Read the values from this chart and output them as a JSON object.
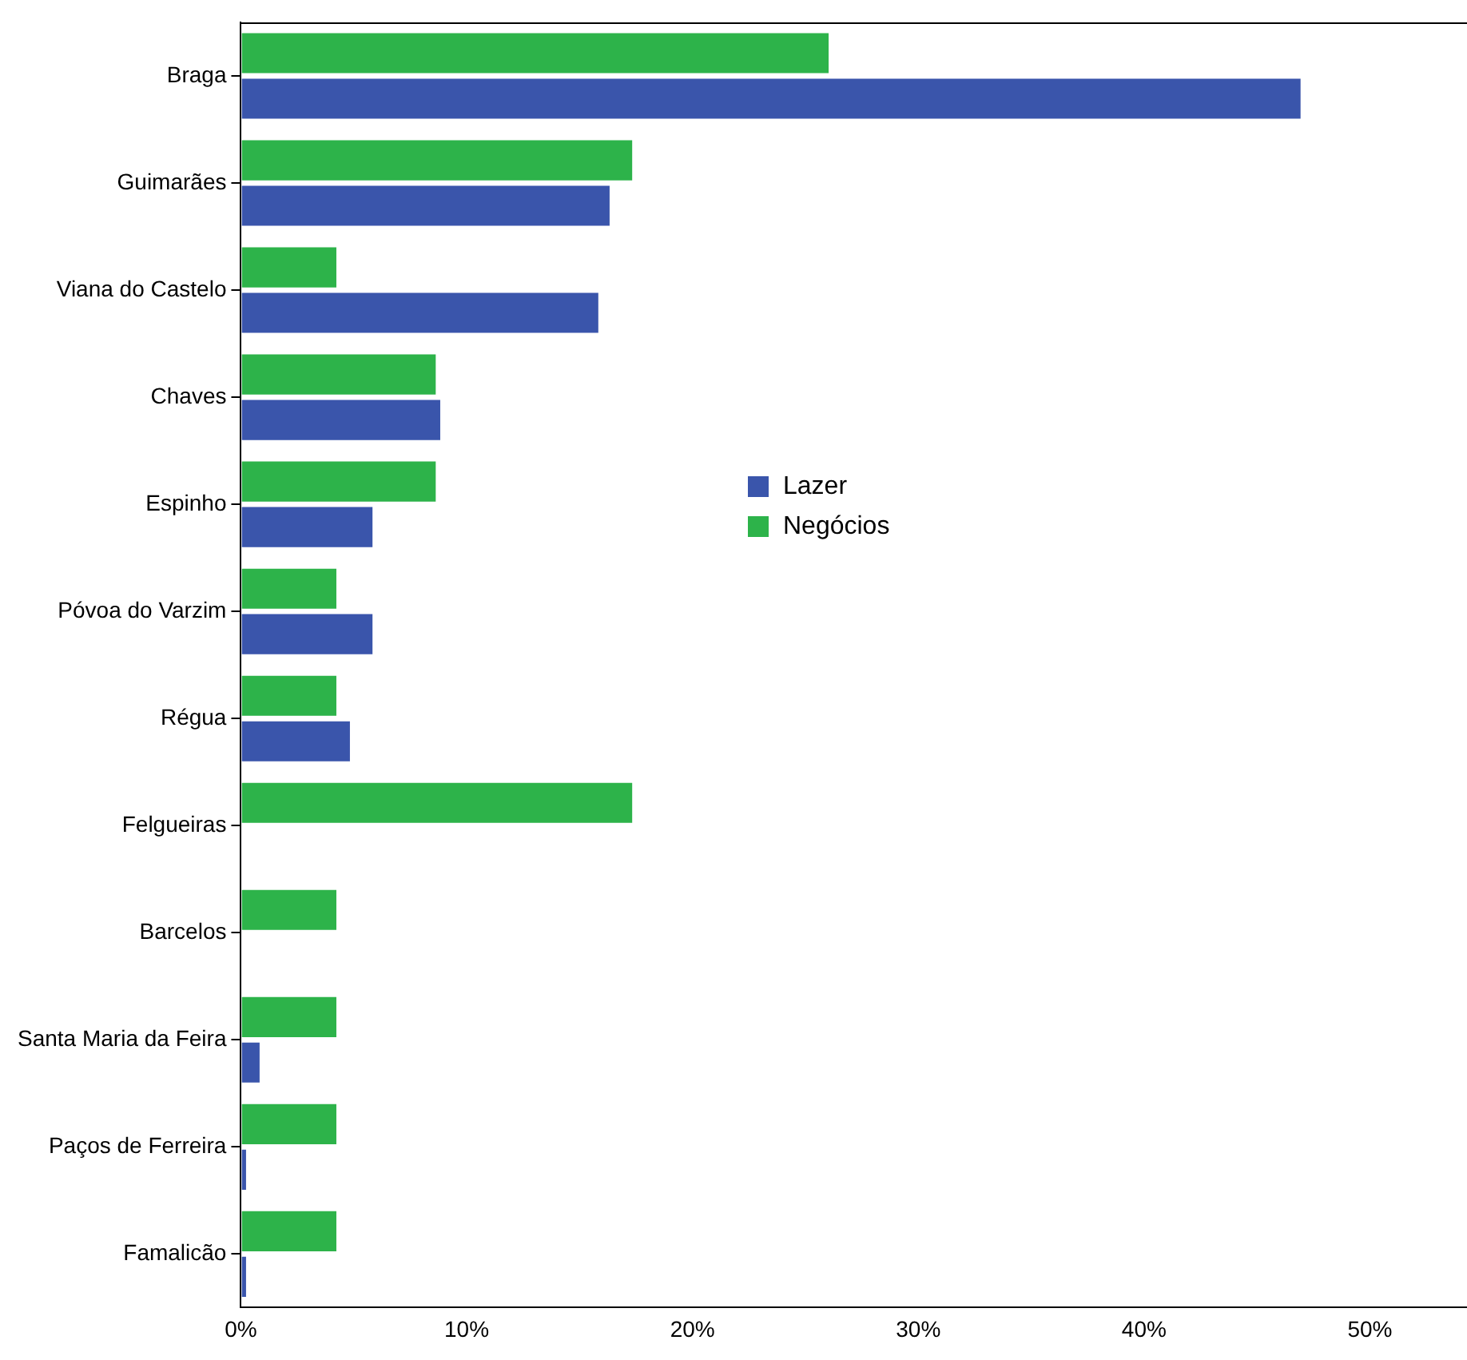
{
  "chart_data": {
    "type": "bar",
    "orientation": "horizontal",
    "categories": [
      "Braga",
      "Guimarães",
      "Viana do Castelo",
      "Chaves",
      "Espinho",
      "Póvoa do Varzim",
      "Régua",
      "Felgueiras",
      "Barcelos",
      "Santa Maria da Feira",
      "Paços de Ferreira",
      "Famalicão"
    ],
    "series": [
      {
        "name": "Negócios",
        "color": "#2db34a",
        "values": [
          26.1,
          17.4,
          4.3,
          8.7,
          8.7,
          4.3,
          4.3,
          17.4,
          4.3,
          4.3,
          4.3,
          4.3
        ]
      },
      {
        "name": "Lazer",
        "color": "#3a55ab",
        "values": [
          47.0,
          16.4,
          15.9,
          8.9,
          5.9,
          5.9,
          4.9,
          null,
          null,
          0.9,
          0.3,
          0.3
        ]
      }
    ],
    "xlim": [
      0,
      54.3
    ],
    "xticks": [
      {
        "value": 0,
        "label": "0%"
      },
      {
        "value": 10,
        "label": "10%"
      },
      {
        "value": 20,
        "label": "20%"
      },
      {
        "value": 30,
        "label": "30%"
      },
      {
        "value": 40,
        "label": "40%"
      },
      {
        "value": 50,
        "label": "50%"
      }
    ],
    "grid": false,
    "legend": "center"
  }
}
